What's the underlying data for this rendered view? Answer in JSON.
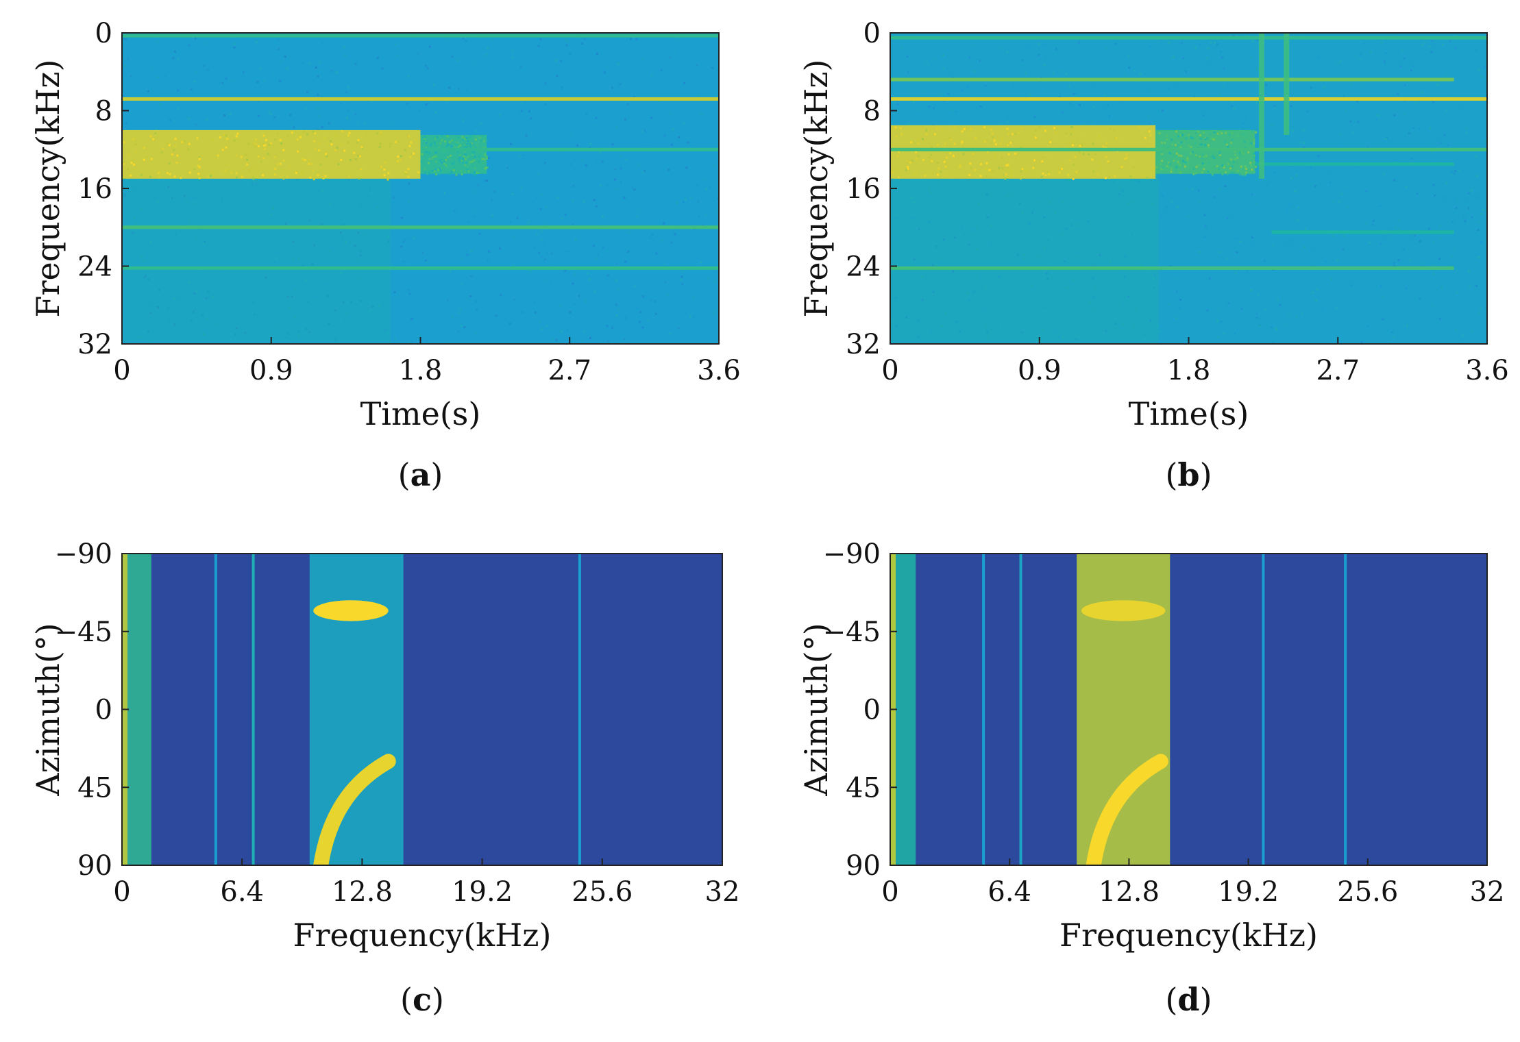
{
  "figure_title": "",
  "colors": {
    "background": "#2f3d8f",
    "cyan": "#1b9fcf",
    "teal": "#1fb5a6",
    "green": "#52c36a",
    "yellow": "#f2dd3a",
    "gold": "#f8c82a"
  },
  "chart_data": [
    {
      "id": "a",
      "type": "heatmap",
      "panel_label": "a",
      "title": "",
      "xlabel": "Time(s)",
      "ylabel": "Frequency(kHz)",
      "xlim": [
        0,
        3.6
      ],
      "ylim": [
        0,
        32
      ],
      "y_reversed": true,
      "x_ticks": [
        "0",
        "0.9",
        "1.8",
        "2.7",
        "3.6"
      ],
      "y_ticks": [
        "0",
        "8",
        "16",
        "24",
        "32"
      ],
      "colormap": "parula",
      "background_level": 0.35,
      "bands": [
        {
          "x_start": 0,
          "x_end": 1.8,
          "y_low": 10,
          "y_high": 15,
          "level": 0.9
        },
        {
          "x_start": 1.8,
          "x_end": 2.2,
          "y_low": 10.5,
          "y_high": 14.5,
          "level": 0.55
        }
      ],
      "lines": [
        {
          "y": 0.3,
          "x_start": 0,
          "x_end": 3.6,
          "level": 0.55
        },
        {
          "y": 6.8,
          "x_start": 0,
          "x_end": 3.6,
          "level": 0.85
        },
        {
          "y": 12,
          "x_start": 1.8,
          "x_end": 3.6,
          "level": 0.55
        },
        {
          "y": 20,
          "x_start": 0,
          "x_end": 3.6,
          "level": 0.6
        },
        {
          "y": 24.2,
          "x_start": 0,
          "x_end": 3.6,
          "level": 0.55
        }
      ]
    },
    {
      "id": "b",
      "type": "heatmap",
      "panel_label": "b",
      "title": "",
      "xlabel": "Time(s)",
      "ylabel": "Frequency(kHz)",
      "xlim": [
        0,
        3.6
      ],
      "ylim": [
        0,
        32
      ],
      "y_reversed": true,
      "x_ticks": [
        "0",
        "0.9",
        "1.8",
        "2.7",
        "3.6"
      ],
      "y_ticks": [
        "0",
        "8",
        "16",
        "24",
        "32"
      ],
      "colormap": "parula",
      "background_level": 0.37,
      "bands": [
        {
          "x_start": 0,
          "x_end": 1.6,
          "y_low": 9.5,
          "y_high": 15,
          "level": 0.9
        },
        {
          "x_start": 1.6,
          "x_end": 2.2,
          "y_low": 10,
          "y_high": 14.5,
          "level": 0.6
        }
      ],
      "lines": [
        {
          "y": 0.5,
          "x_start": 0,
          "x_end": 3.6,
          "level": 0.55
        },
        {
          "y": 4.8,
          "x_start": 0,
          "x_end": 3.4,
          "level": 0.7
        },
        {
          "y": 6.8,
          "x_start": 0,
          "x_end": 3.6,
          "level": 0.9
        },
        {
          "y": 12,
          "x_start": 0,
          "x_end": 3.6,
          "level": 0.6
        },
        {
          "y": 13.5,
          "x_start": 2.2,
          "x_end": 3.4,
          "level": 0.5
        },
        {
          "y": 20.5,
          "x_start": 2.3,
          "x_end": 3.4,
          "level": 0.5
        },
        {
          "y": 24.2,
          "x_start": 0,
          "x_end": 3.4,
          "level": 0.6
        }
      ],
      "vertical_bursts": [
        {
          "x": 2.24,
          "y_low": 0,
          "y_high": 15,
          "level": 0.6
        },
        {
          "x": 2.39,
          "y_low": 0,
          "y_high": 10.5,
          "level": 0.6
        }
      ]
    },
    {
      "id": "c",
      "type": "heatmap",
      "panel_label": "c",
      "title": "",
      "xlabel": "Frequency(kHz)",
      "ylabel": "Azimuth(°)",
      "xlim": [
        0,
        32
      ],
      "ylim": [
        -90,
        90
      ],
      "y_reversed": true,
      "x_ticks": [
        "0",
        "6.4",
        "12.8",
        "19.2",
        "25.6",
        "32"
      ],
      "y_ticks": [
        "−90",
        "−45",
        "0",
        "45",
        "90"
      ],
      "colormap": "parula",
      "background_level": 0.05,
      "low_freq_edge": {
        "x_start": 0,
        "x_end": 1.2,
        "level": 0.55
      },
      "bands": [
        {
          "x_start": 10,
          "x_end": 15,
          "y_low": -90,
          "y_high": 90,
          "level": 0.4
        }
      ],
      "hotspots": [
        {
          "x_center": 12.2,
          "y": -57,
          "x_width": 4,
          "y_height": 12,
          "level": 1.0
        },
        {
          "x_center": 11.5,
          "y": 60,
          "x_width": 3,
          "y_height": 60,
          "level": 0.95
        }
      ],
      "vertical_lines": [
        {
          "x": 5.0,
          "level": 0.35
        },
        {
          "x": 7.0,
          "level": 0.45
        },
        {
          "x": 24.4,
          "level": 0.35
        }
      ]
    },
    {
      "id": "d",
      "type": "heatmap",
      "panel_label": "d",
      "title": "",
      "xlabel": "Frequency(kHz)",
      "ylabel": "Azimuth(°)",
      "xlim": [
        0,
        32
      ],
      "ylim": [
        -90,
        90
      ],
      "y_reversed": true,
      "x_ticks": [
        "0",
        "6.4",
        "12.8",
        "19.2",
        "25.6",
        "32"
      ],
      "y_ticks": [
        "−90",
        "−45",
        "0",
        "45",
        "90"
      ],
      "colormap": "parula",
      "background_level": 0.05,
      "low_freq_edge": {
        "x_start": 0,
        "x_end": 1.0,
        "level": 0.5
      },
      "bands": [
        {
          "x_start": 10,
          "x_end": 15,
          "y_low": -90,
          "y_high": 90,
          "level": 0.8
        }
      ],
      "hotspots": [
        {
          "x_center": 12.5,
          "y": -57,
          "x_width": 4.5,
          "y_height": 12,
          "level": 0.95
        },
        {
          "x_center": 11.8,
          "y": 60,
          "x_width": 3,
          "y_height": 60,
          "level": 1.0
        }
      ],
      "vertical_lines": [
        {
          "x": 5.0,
          "level": 0.35
        },
        {
          "x": 7.0,
          "level": 0.4
        },
        {
          "x": 20.0,
          "level": 0.35
        },
        {
          "x": 24.4,
          "level": 0.35
        }
      ]
    }
  ]
}
